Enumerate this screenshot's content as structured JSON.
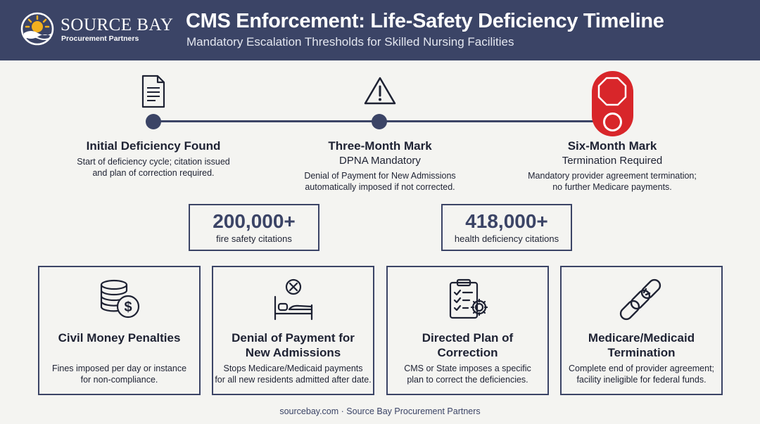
{
  "header": {
    "brand_name": "SOURCE BAY",
    "brand_sub": "Procurement Partners",
    "title": "CMS Enforcement: Life-Safety Deficiency Timeline",
    "subtitle": "Mandatory Escalation Thresholds for Skilled Nursing Facilities"
  },
  "timeline": [
    {
      "icon": "document-icon",
      "title": "Initial Deficiency Found",
      "subtitle": "",
      "desc_line1": "Start of deficiency cycle; citation issued",
      "desc_line2": "and plan of correction required."
    },
    {
      "icon": "warning-icon",
      "title": "Three-Month Mark",
      "subtitle": "DPNA Mandatory",
      "desc_line1": "Denial of Payment for New Admissions",
      "desc_line2": "automatically imposed if not corrected."
    },
    {
      "icon": "stop-sign-icon",
      "title": "Six-Month Mark",
      "subtitle": "Termination Required",
      "desc_line1": "Mandatory provider agreement termination;",
      "desc_line2": "no further Medicare payments."
    }
  ],
  "stats": [
    {
      "value": "200,000+",
      "label": "fire safety citations"
    },
    {
      "value": "418,000+",
      "label": "health deficiency citations"
    }
  ],
  "cards": [
    {
      "icon": "coins-dollar-icon",
      "title_line1": "Civil Money Penalties",
      "title_line2": "",
      "desc_line1": "Fines imposed per day or instance",
      "desc_line2": "for non-compliance."
    },
    {
      "icon": "bed-denied-icon",
      "title_line1": "Denial of Payment for",
      "title_line2": "New Admissions",
      "desc_line1": "Stops Medicare/Medicaid payments",
      "desc_line2": "for all new residents admitted after date."
    },
    {
      "icon": "clipboard-gear-icon",
      "title_line1": "Directed Plan of",
      "title_line2": "Correction",
      "desc_line1": "CMS or State imposes a specific",
      "desc_line2": "plan to correct the deficiencies."
    },
    {
      "icon": "broken-chain-icon",
      "title_line1": "Medicare/Medicaid",
      "title_line2": "Termination",
      "desc_line1": "Complete end of provider agreement;",
      "desc_line2": "facility ineligible for federal funds."
    }
  ],
  "colors": {
    "navy": "#3b4466",
    "background": "#f4f4f1",
    "alert_red": "#d8262a",
    "logo_sun": "#f2b01e"
  },
  "footer": "sourcebay.com · Source Bay Procurement Partners"
}
